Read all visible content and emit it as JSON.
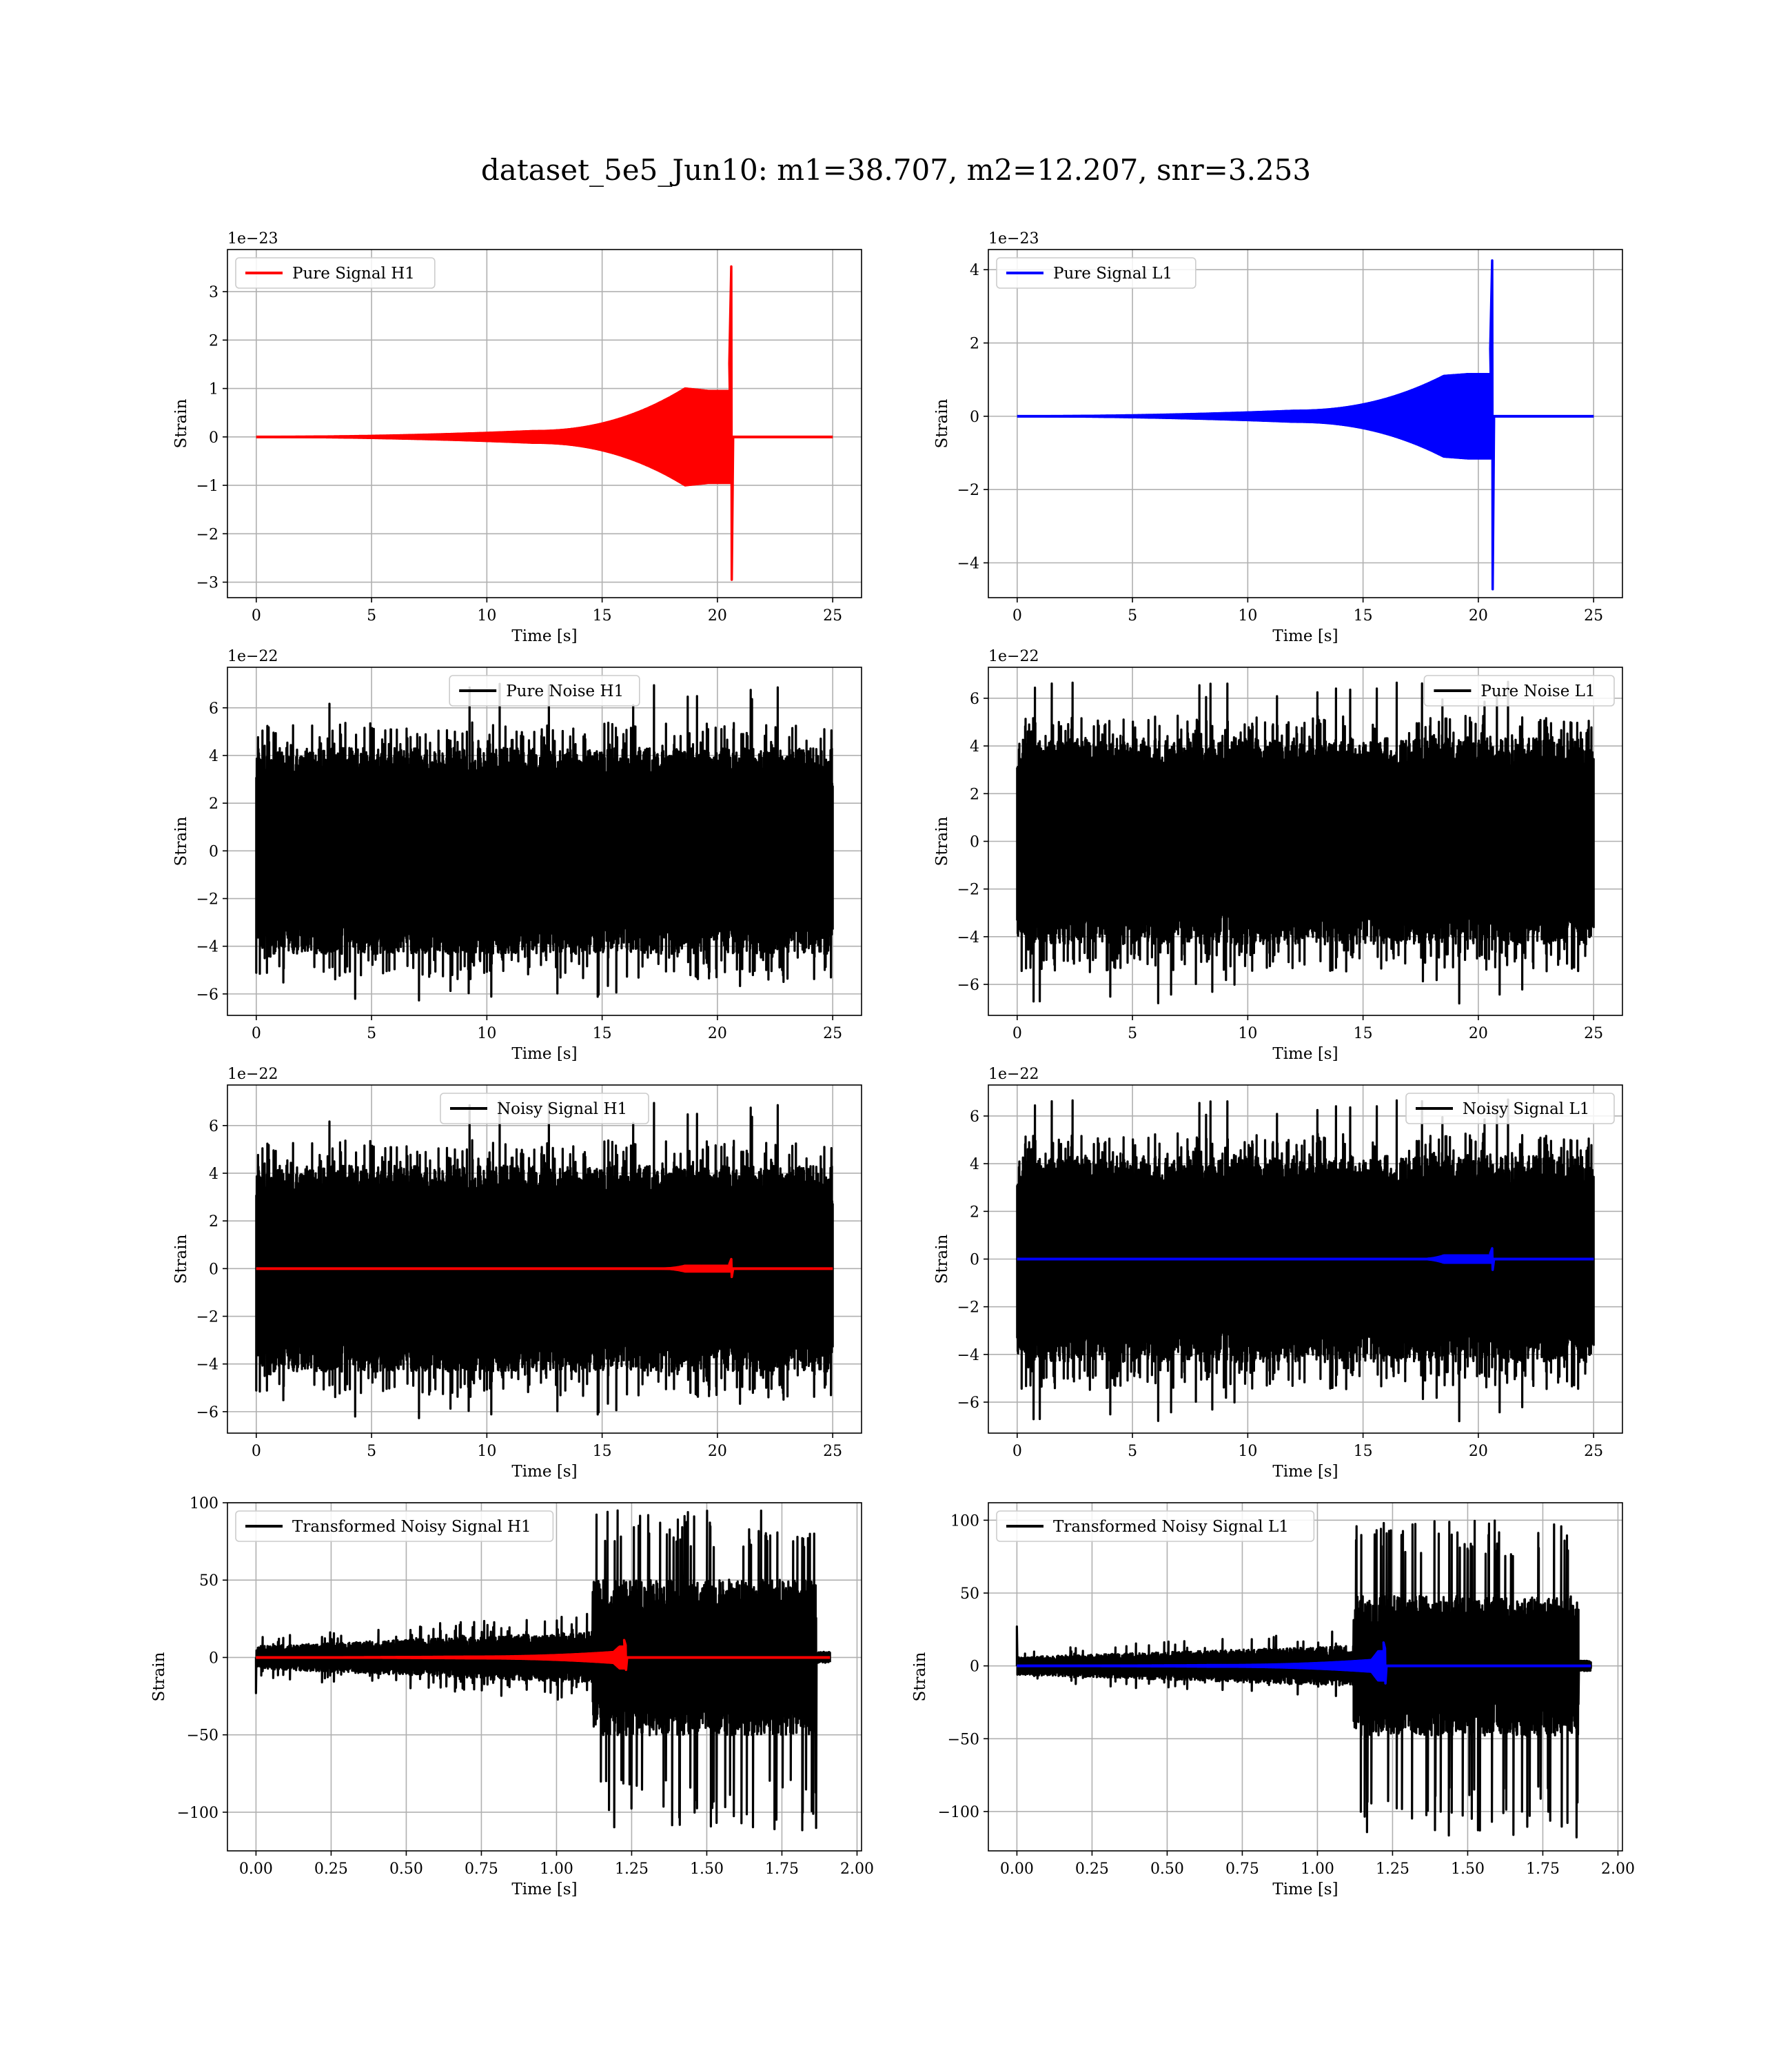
{
  "figure_title": "dataset_5e5_Jun10: m1=38.707, m2=12.207, snr=3.253",
  "chart_data": [
    {
      "id": "p1",
      "type": "line",
      "legend": "Pure Signal H1",
      "legend_loc": "upper left",
      "xlabel": "Time [s]",
      "ylabel": "Strain",
      "offset_text": "1e−23",
      "grid": true,
      "xlim": [
        -1.25,
        26.25
      ],
      "ylim": [
        -3.32,
        3.87
      ],
      "xticks": [
        0,
        5,
        10,
        15,
        20,
        25
      ],
      "xtick_labels": [
        "0",
        "5",
        "10",
        "15",
        "20",
        "25"
      ],
      "yticks": [
        -3,
        -2,
        -1,
        0,
        1,
        2,
        3
      ],
      "ytick_labels": [
        "−3",
        "−2",
        "−1",
        "0",
        "1",
        "2",
        "3"
      ],
      "series": [
        {
          "kind": "chirp",
          "color": "#ff0000",
          "t0": 0,
          "t_end": 25,
          "t_merge": 20.6,
          "rise_start": 12.0,
          "pre_amp": 0.12,
          "amp_at_19": 1.0,
          "peak_pos": 3.52,
          "peak_neg": -2.95,
          "shelf_start": 18.6,
          "shelf_pos": 0.95,
          "shelf_neg": -0.95
        }
      ]
    },
    {
      "id": "p2",
      "type": "line",
      "legend": "Pure Signal L1",
      "legend_loc": "upper left",
      "xlabel": "Time [s]",
      "ylabel": "Strain",
      "offset_text": "1e−23",
      "grid": true,
      "xlim": [
        -1.25,
        26.25
      ],
      "ylim": [
        -4.95,
        4.55
      ],
      "xticks": [
        0,
        5,
        10,
        15,
        20,
        25
      ],
      "xtick_labels": [
        "0",
        "5",
        "10",
        "15",
        "20",
        "25"
      ],
      "yticks": [
        -4,
        -2,
        0,
        2,
        4
      ],
      "ytick_labels": [
        "−4",
        "−2",
        "0",
        "2",
        "4"
      ],
      "series": [
        {
          "kind": "chirp",
          "color": "#0000ff",
          "t0": 0,
          "t_end": 25,
          "t_merge": 20.6,
          "rise_start": 12.0,
          "pre_amp": 0.15,
          "amp_at_19": 1.1,
          "peak_pos": 4.25,
          "peak_neg": -4.72,
          "shelf_start": 18.5,
          "shelf_pos": 1.15,
          "shelf_neg": -1.15
        }
      ]
    },
    {
      "id": "p3",
      "type": "line",
      "legend": "Pure Noise H1",
      "legend_loc": "upper center",
      "xlabel": "Time [s]",
      "ylabel": "Strain",
      "offset_text": "1e−22",
      "grid": true,
      "xlim": [
        -1.25,
        26.25
      ],
      "ylim": [
        -6.9,
        7.7
      ],
      "xticks": [
        0,
        5,
        10,
        15,
        20,
        25
      ],
      "xtick_labels": [
        "0",
        "5",
        "10",
        "15",
        "20",
        "25"
      ],
      "yticks": [
        -6,
        -4,
        -2,
        0,
        2,
        4,
        6
      ],
      "ytick_labels": [
        "−6",
        "−4",
        "−2",
        "0",
        "2",
        "4",
        "6"
      ],
      "series": [
        {
          "kind": "noise",
          "color": "#000000",
          "t0": 0,
          "t_end": 25,
          "band": 3.6,
          "spike_max": 4.9,
          "spike_min": -4.9,
          "extreme_max": 7.05,
          "extreme_min": -6.3,
          "seed": 11
        }
      ]
    },
    {
      "id": "p4",
      "type": "line",
      "legend": "Pure Noise L1",
      "legend_loc": "upper right",
      "xlabel": "Time [s]",
      "ylabel": "Strain",
      "offset_text": "1e−22",
      "grid": true,
      "xlim": [
        -1.25,
        26.25
      ],
      "ylim": [
        -7.3,
        7.3
      ],
      "xticks": [
        0,
        5,
        10,
        15,
        20,
        25
      ],
      "xtick_labels": [
        "0",
        "5",
        "10",
        "15",
        "20",
        "25"
      ],
      "yticks": [
        -6,
        -4,
        -2,
        0,
        2,
        4,
        6
      ],
      "ytick_labels": [
        "−6",
        "−4",
        "−2",
        "0",
        "2",
        "4",
        "6"
      ],
      "series": [
        {
          "kind": "noise",
          "color": "#000000",
          "t0": 0,
          "t_end": 25,
          "band": 3.6,
          "spike_max": 4.8,
          "spike_min": -5.0,
          "extreme_max": 6.7,
          "extreme_min": -6.8,
          "seed": 23
        }
      ]
    },
    {
      "id": "p5",
      "type": "line",
      "legend": "Noisy Signal H1",
      "legend_loc": "upper center",
      "xlabel": "Time [s]",
      "ylabel": "Strain",
      "offset_text": "1e−22",
      "grid": true,
      "xlim": [
        -1.25,
        26.25
      ],
      "ylim": [
        -6.9,
        7.7
      ],
      "xticks": [
        0,
        5,
        10,
        15,
        20,
        25
      ],
      "xtick_labels": [
        "0",
        "5",
        "10",
        "15",
        "20",
        "25"
      ],
      "yticks": [
        -6,
        -4,
        -2,
        0,
        2,
        4,
        6
      ],
      "ytick_labels": [
        "−6",
        "−4",
        "−2",
        "0",
        "2",
        "4",
        "6"
      ],
      "series": [
        {
          "kind": "noise",
          "color": "#000000",
          "t0": 0,
          "t_end": 25,
          "band": 3.6,
          "spike_max": 4.9,
          "spike_min": -4.9,
          "extreme_max": 7.05,
          "extreme_min": -6.3,
          "seed": 11
        },
        {
          "kind": "chirp",
          "color": "#ff0000",
          "t0": 0,
          "t_end": 25,
          "t_merge": 20.6,
          "rise_start": 17.5,
          "pre_amp": 0.0,
          "amp_at_19": 0.12,
          "peak_pos": 0.4,
          "peak_neg": -0.35,
          "shelf_start": 18.6,
          "shelf_pos": 0.12,
          "shelf_neg": -0.12
        }
      ]
    },
    {
      "id": "p6",
      "type": "line",
      "legend": "Noisy Signal L1",
      "legend_loc": "upper right",
      "xlabel": "Time [s]",
      "ylabel": "Strain",
      "offset_text": "1e−22",
      "grid": true,
      "xlim": [
        -1.25,
        26.25
      ],
      "ylim": [
        -7.3,
        7.3
      ],
      "xticks": [
        0,
        5,
        10,
        15,
        20,
        25
      ],
      "xtick_labels": [
        "0",
        "5",
        "10",
        "15",
        "20",
        "25"
      ],
      "yticks": [
        -6,
        -4,
        -2,
        0,
        2,
        4,
        6
      ],
      "ytick_labels": [
        "−6",
        "−4",
        "−2",
        "0",
        "2",
        "4",
        "6"
      ],
      "series": [
        {
          "kind": "noise",
          "color": "#000000",
          "t0": 0,
          "t_end": 25,
          "band": 3.6,
          "spike_max": 4.8,
          "spike_min": -5.0,
          "extreme_max": 6.7,
          "extreme_min": -6.8,
          "seed": 23
        },
        {
          "kind": "chirp",
          "color": "#0000ff",
          "t0": 0,
          "t_end": 25,
          "t_merge": 20.6,
          "rise_start": 17.5,
          "pre_amp": 0.0,
          "amp_at_19": 0.15,
          "peak_pos": 0.45,
          "peak_neg": -0.45,
          "shelf_start": 18.5,
          "shelf_pos": 0.15,
          "shelf_neg": -0.15
        }
      ]
    },
    {
      "id": "p7",
      "type": "line",
      "legend": "Transformed Noisy Signal H1",
      "legend_loc": "upper left",
      "xlabel": "Time [s]",
      "ylabel": "Strain",
      "offset_text": "",
      "grid": true,
      "xlim": [
        -0.095,
        2.015
      ],
      "ylim": [
        -125,
        100
      ],
      "xticks": [
        0,
        0.25,
        0.5,
        0.75,
        1.0,
        1.25,
        1.5,
        1.75,
        2.0
      ],
      "xtick_labels": [
        "0.00",
        "0.25",
        "0.50",
        "0.75",
        "1.00",
        "1.25",
        "1.50",
        "1.75",
        "2.00"
      ],
      "yticks": [
        -100,
        -50,
        0,
        50,
        100
      ],
      "ytick_labels": [
        "−100",
        "−50",
        "0",
        "50",
        "100"
      ],
      "series": [
        {
          "kind": "tnoise",
          "color": "#000000",
          "t0": 0,
          "t_end": 1.91,
          "t_jump": 1.12,
          "t_drop": 1.865,
          "low_band": 6,
          "high_band": 42,
          "high_max": 95,
          "high_min": -112,
          "start_spike": -23,
          "seed": 37
        },
        {
          "kind": "chirp",
          "color": "#ff0000",
          "t0": 0,
          "t_end": 1.91,
          "t_merge": 1.23,
          "rise_start": 0.7,
          "pre_amp": 0.5,
          "amp_at_19": 3.5,
          "peak_pos": 8,
          "peak_neg": -8,
          "shelf_start": 1.19,
          "shelf_pos": 7,
          "shelf_neg": -7
        }
      ]
    },
    {
      "id": "p8",
      "type": "line",
      "legend": "Transformed Noisy Signal L1",
      "legend_loc": "upper left",
      "xlabel": "Time [s]",
      "ylabel": "Strain",
      "offset_text": "",
      "grid": true,
      "xlim": [
        -0.095,
        2.015
      ],
      "ylim": [
        -127,
        112
      ],
      "xticks": [
        0,
        0.25,
        0.5,
        0.75,
        1.0,
        1.25,
        1.5,
        1.75,
        2.0
      ],
      "xtick_labels": [
        "0.00",
        "0.25",
        "0.50",
        "0.75",
        "1.00",
        "1.25",
        "1.50",
        "1.75",
        "2.00"
      ],
      "yticks": [
        -100,
        -50,
        0,
        50,
        100
      ],
      "ytick_labels": [
        "−100",
        "−50",
        "0",
        "50",
        "100"
      ],
      "series": [
        {
          "kind": "tnoise",
          "color": "#000000",
          "t0": 0,
          "t_end": 1.91,
          "t_jump": 1.12,
          "t_drop": 1.87,
          "low_band": 5,
          "high_band": 40,
          "high_max": 100,
          "high_min": -118,
          "start_spike": 27,
          "seed": 41
        },
        {
          "kind": "chirp",
          "color": "#0000ff",
          "t0": 0,
          "t_end": 1.91,
          "t_merge": 1.225,
          "rise_start": 0.65,
          "pre_amp": 0.5,
          "amp_at_19": 4,
          "peak_pos": 12,
          "peak_neg": -12,
          "shelf_start": 1.18,
          "shelf_pos": 10,
          "shelf_neg": -10
        }
      ]
    }
  ]
}
